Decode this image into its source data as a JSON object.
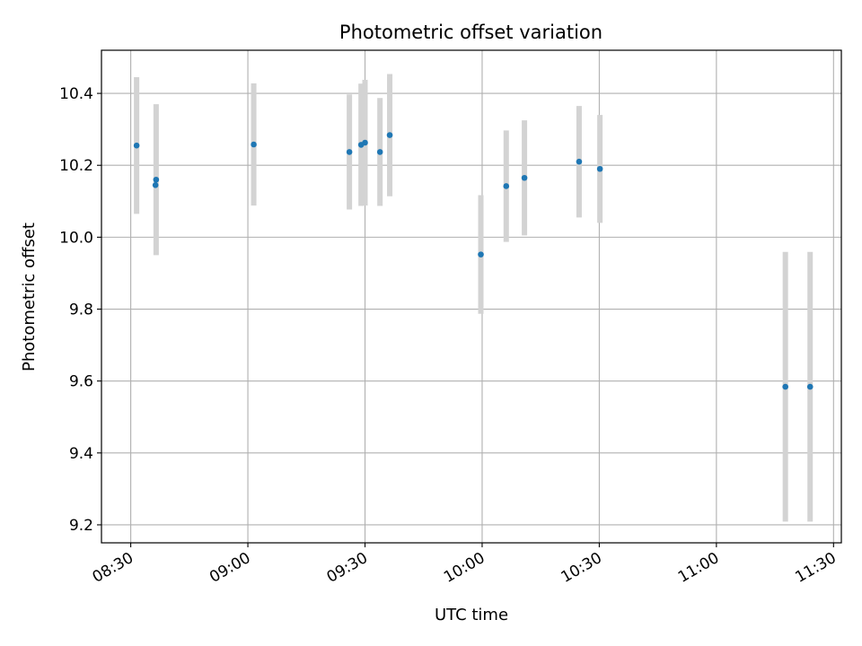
{
  "chart_data": {
    "type": "scatter",
    "title": "Photometric offset variation",
    "xlabel": "UTC time",
    "ylabel": "Photometric offset",
    "x_tick_labels": [
      "08:30",
      "09:00",
      "09:30",
      "10:00",
      "10:30",
      "11:00",
      "11:30"
    ],
    "y_tick_labels": [
      "9.2",
      "9.4",
      "9.6",
      "9.8",
      "10.0",
      "10.2",
      "10.4"
    ],
    "y_tick_values": [
      9.2,
      9.4,
      9.6,
      9.8,
      10.0,
      10.2,
      10.4
    ],
    "xlim": [
      "08:22:30",
      "11:32:00"
    ],
    "ylim": [
      9.15,
      10.52
    ],
    "grid": true,
    "colors": {
      "point": "#1f77b4",
      "errorbar": "#d3d3d3",
      "grid": "#b0b0b0"
    },
    "points": [
      {
        "x": "08:31:30",
        "y": 10.255,
        "yerr": 0.19
      },
      {
        "x": "08:36:30",
        "y": 10.16,
        "yerr": 0.21
      },
      {
        "x": "08:36:20",
        "y": 10.145,
        "yerr": 0.0
      },
      {
        "x": "09:01:30",
        "y": 10.258,
        "yerr": 0.17
      },
      {
        "x": "09:26:00",
        "y": 10.237,
        "yerr": 0.16
      },
      {
        "x": "09:29:00",
        "y": 10.257,
        "yerr": 0.17
      },
      {
        "x": "09:30:00",
        "y": 10.263,
        "yerr": 0.175
      },
      {
        "x": "09:33:50",
        "y": 10.237,
        "yerr": 0.15
      },
      {
        "x": "09:36:20",
        "y": 10.284,
        "yerr": 0.17
      },
      {
        "x": "09:59:40",
        "y": 9.952,
        "yerr": 0.165
      },
      {
        "x": "10:06:10",
        "y": 10.142,
        "yerr": 0.155
      },
      {
        "x": "10:10:50",
        "y": 10.165,
        "yerr": 0.16
      },
      {
        "x": "10:24:50",
        "y": 10.21,
        "yerr": 0.155
      },
      {
        "x": "10:30:10",
        "y": 10.19,
        "yerr": 0.15
      },
      {
        "x": "11:17:40",
        "y": 9.584,
        "yerr": 0.375
      },
      {
        "x": "11:24:00",
        "y": 9.584,
        "yerr": 0.375
      }
    ]
  }
}
